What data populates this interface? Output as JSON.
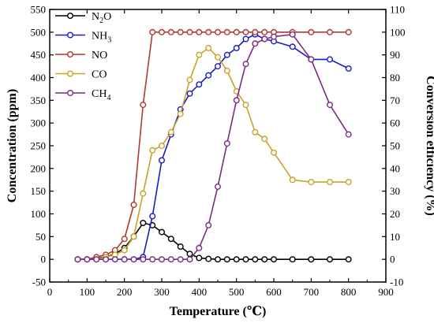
{
  "chart_data": {
    "type": "line",
    "xlabel": "Temperature (℃)",
    "ylabel": "Concentration (ppm)",
    "y2label": "Conversion efficiency (%)",
    "xlim": [
      0,
      900
    ],
    "ylim": [
      -50,
      550
    ],
    "y2lim": [
      -10,
      110
    ],
    "xticks": [
      0,
      100,
      200,
      300,
      400,
      500,
      600,
      700,
      800,
      900
    ],
    "yticks": [
      -50,
      0,
      50,
      100,
      150,
      200,
      250,
      300,
      350,
      400,
      450,
      500,
      550
    ],
    "y2ticks": [
      -10,
      0,
      10,
      20,
      30,
      40,
      50,
      60,
      70,
      80,
      90,
      100,
      110
    ],
    "grid": false,
    "legend_position": "top-left",
    "series": [
      {
        "name": "N2O",
        "label_main": "N",
        "label_sub": "2",
        "label_tail": "O",
        "axis": "left",
        "color": "#000000",
        "x": [
          75,
          100,
          125,
          150,
          175,
          200,
          225,
          250,
          275,
          300,
          325,
          350,
          375,
          400,
          425,
          450,
          475,
          500,
          525,
          550,
          575,
          600,
          650,
          700,
          750,
          800
        ],
        "y": [
          0,
          0,
          2,
          5,
          12,
          25,
          50,
          80,
          75,
          60,
          45,
          28,
          12,
          3,
          1,
          0,
          0,
          0,
          0,
          0,
          0,
          0,
          0,
          0,
          0,
          0
        ]
      },
      {
        "name": "NH3",
        "label_main": "NH",
        "label_sub": "3",
        "label_tail": "",
        "axis": "left",
        "color": "#1a1acc",
        "x": [
          75,
          100,
          125,
          150,
          175,
          200,
          225,
          250,
          275,
          300,
          325,
          350,
          375,
          400,
          425,
          450,
          475,
          500,
          525,
          550,
          575,
          600,
          650,
          700,
          750,
          800
        ],
        "y": [
          0,
          0,
          0,
          0,
          0,
          0,
          0,
          5,
          95,
          218,
          275,
          330,
          365,
          385,
          405,
          425,
          450,
          465,
          485,
          495,
          485,
          480,
          468,
          440,
          440,
          420
        ]
      },
      {
        "name": "NO",
        "label_main": "NO",
        "label_sub": "",
        "label_tail": "",
        "axis": "right",
        "color": "#b03a2e",
        "x": [
          75,
          100,
          125,
          150,
          175,
          200,
          225,
          250,
          275,
          300,
          325,
          350,
          375,
          400,
          425,
          450,
          475,
          500,
          525,
          550,
          575,
          600,
          650,
          700,
          750,
          800
        ],
        "y": [
          0,
          0,
          1,
          2,
          4,
          9,
          24,
          68,
          100,
          100,
          100,
          100,
          100,
          100,
          100,
          100,
          100,
          100,
          100,
          100,
          100,
          100,
          100,
          100,
          100,
          100
        ]
      },
      {
        "name": "CO",
        "label_main": "CO",
        "label_sub": "",
        "label_tail": "",
        "axis": "right",
        "color": "#c9a227",
        "x": [
          75,
          100,
          125,
          150,
          175,
          200,
          225,
          250,
          275,
          300,
          325,
          350,
          375,
          400,
          425,
          450,
          475,
          500,
          525,
          550,
          575,
          600,
          650,
          700,
          750,
          800
        ],
        "y": [
          0,
          0,
          0,
          1,
          2,
          4,
          10,
          29,
          48,
          50,
          56,
          64,
          79,
          90,
          93,
          89,
          83,
          74,
          68,
          56,
          53,
          47,
          35,
          34,
          34,
          34
        ]
      },
      {
        "name": "CH4",
        "label_main": "CH",
        "label_sub": "4",
        "label_tail": "",
        "axis": "right",
        "color": "#7b2c83",
        "x": [
          75,
          100,
          125,
          150,
          175,
          200,
          225,
          250,
          275,
          300,
          325,
          350,
          375,
          400,
          425,
          450,
          475,
          500,
          525,
          550,
          575,
          600,
          650,
          700,
          750,
          800
        ],
        "y": [
          0,
          0,
          0,
          0,
          0,
          0,
          0,
          0,
          0,
          0,
          0,
          0,
          0,
          5,
          15,
          32,
          51,
          70,
          86,
          95,
          97,
          98,
          99,
          88,
          68,
          55
        ]
      }
    ]
  }
}
